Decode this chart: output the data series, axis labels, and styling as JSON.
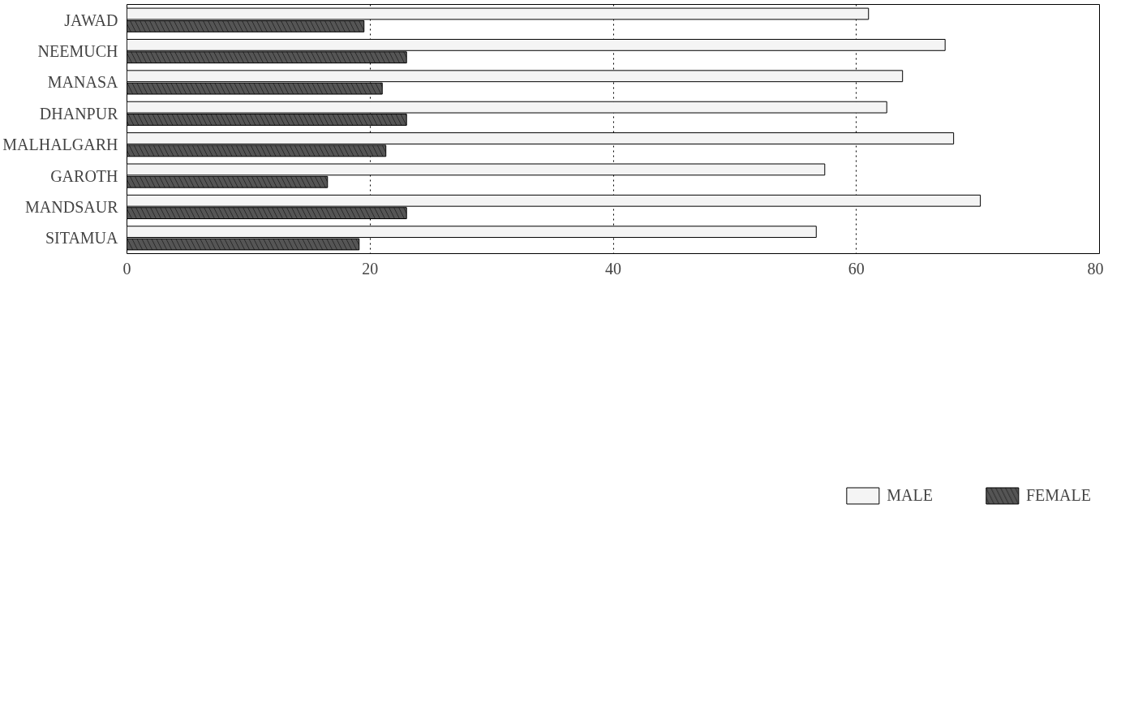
{
  "chart_data": {
    "type": "bar",
    "orientation": "horizontal",
    "categories": [
      "JAWAD",
      "NEEMUCH",
      "MANASA",
      "DHANPUR",
      "MALHALGARH",
      "GAROTH",
      "MANDSAUR",
      "SITAMUA"
    ],
    "series": [
      {
        "name": "MALE",
        "color": "#f4f4f4",
        "values": [
          61,
          67.3,
          63.8,
          62.5,
          68,
          57.4,
          70.2,
          56.7
        ]
      },
      {
        "name": "FEMALE",
        "color": "#555555",
        "values": [
          19.5,
          23,
          21,
          23,
          21.3,
          16.5,
          23,
          19.1
        ]
      }
    ],
    "xlim": [
      0,
      80
    ],
    "xticks": [
      0,
      20,
      40,
      60,
      80
    ],
    "grid": "x",
    "legend": "bottom",
    "line_style": "dotted"
  }
}
